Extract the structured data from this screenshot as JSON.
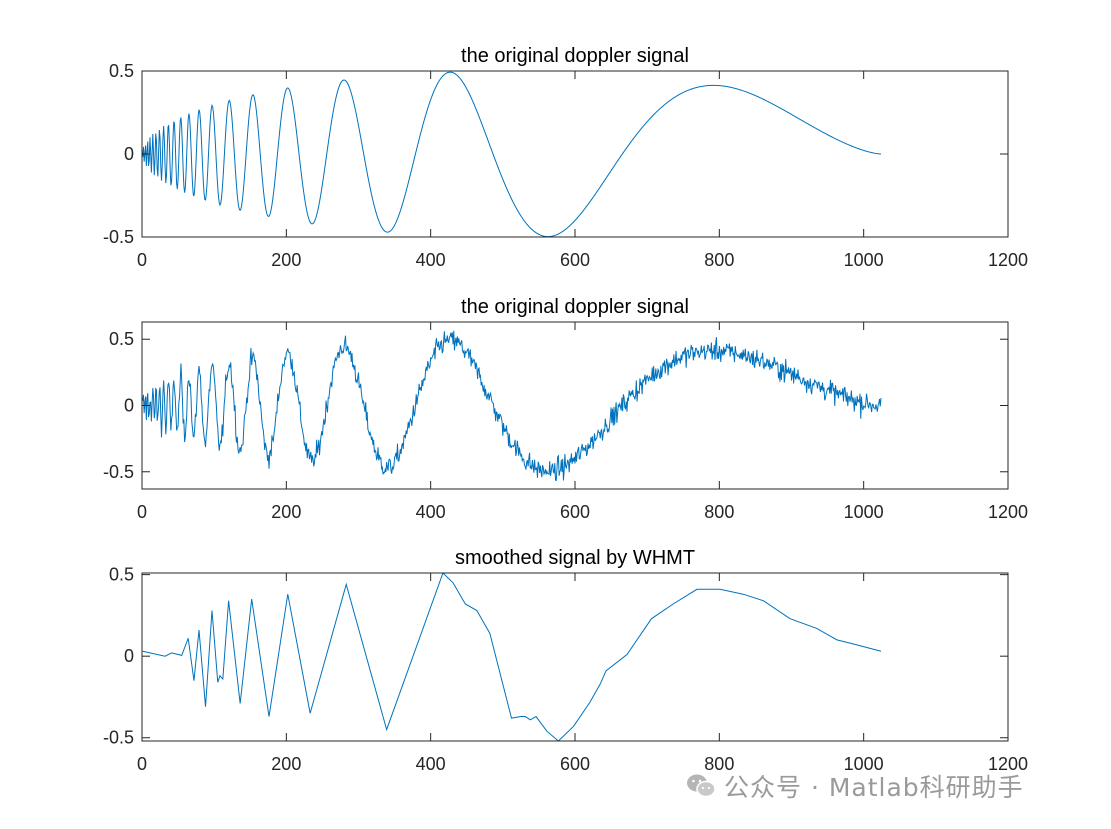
{
  "chart_data": [
    {
      "type": "line",
      "title": "the original doppler signal",
      "xlim": [
        0,
        1200
      ],
      "ylim": [
        -0.5,
        0.5
      ],
      "xticks": [
        "0",
        "200",
        "400",
        "600",
        "800",
        "1000",
        "1200"
      ],
      "yticks": [
        "-0.5",
        "0",
        "0.5"
      ],
      "ytick_values": [
        -0.5,
        0,
        0.5
      ],
      "x_range": [
        1,
        1024
      ],
      "signal": "doppler",
      "color": "#0072BD",
      "grid": false
    },
    {
      "type": "line",
      "title": "the original doppler signal",
      "xlim": [
        0,
        1200
      ],
      "ylim": [
        -0.63,
        0.63
      ],
      "xticks": [
        "0",
        "200",
        "400",
        "600",
        "800",
        "1000",
        "1200"
      ],
      "yticks": [
        "-0.5",
        "0",
        "0.5"
      ],
      "ytick_values": [
        -0.5,
        0,
        0.5
      ],
      "x_range": [
        1,
        1024
      ],
      "signal": "doppler with noise",
      "color": "#0072BD",
      "grid": false
    },
    {
      "type": "line",
      "title": "smoothed signal by WHMT",
      "xlim": [
        0,
        1200
      ],
      "ylim": [
        -0.52,
        0.51
      ],
      "xticks": [
        "0",
        "200",
        "400",
        "600",
        "800",
        "1000",
        "1200"
      ],
      "yticks": [
        "-0.5",
        "0",
        "0.5"
      ],
      "ytick_values": [
        -0.5,
        0,
        0.5
      ],
      "color": "#0072BD",
      "grid": false,
      "x": [
        1,
        32,
        41,
        55,
        64,
        72,
        79,
        88,
        97,
        105,
        108,
        112,
        120,
        136,
        152,
        176,
        202,
        233,
        283,
        339,
        417,
        431,
        448,
        464,
        482,
        512,
        525,
        531,
        538,
        546,
        561,
        577,
        598,
        621,
        635,
        643,
        672,
        706,
        736,
        769,
        801,
        833,
        861,
        898,
        935,
        963,
        990,
        1024
      ],
      "y": [
        0.03,
        0.0,
        0.02,
        0.005,
        0.11,
        -0.15,
        0.16,
        -0.31,
        0.28,
        -0.16,
        -0.12,
        -0.14,
        0.34,
        -0.29,
        0.35,
        -0.37,
        0.38,
        -0.35,
        0.44,
        -0.45,
        0.51,
        0.45,
        0.32,
        0.28,
        0.14,
        -0.38,
        -0.37,
        -0.37,
        -0.39,
        -0.37,
        -0.46,
        -0.52,
        -0.43,
        -0.28,
        -0.17,
        -0.09,
        0.01,
        0.23,
        0.32,
        0.41,
        0.41,
        0.38,
        0.34,
        0.23,
        0.17,
        0.1,
        0.07,
        0.03
      ]
    }
  ],
  "watermark": {
    "icon": "wechat-icon",
    "text": "公众号 · Matlab科研助手"
  }
}
